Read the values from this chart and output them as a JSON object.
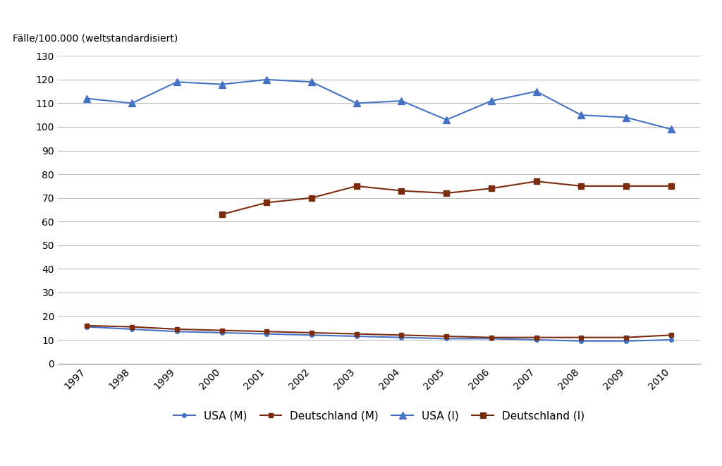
{
  "years": [
    1997,
    1998,
    1999,
    2000,
    2001,
    2002,
    2003,
    2004,
    2005,
    2006,
    2007,
    2008,
    2009,
    2010
  ],
  "usa_mortality": [
    15.5,
    14.5,
    13.5,
    13.0,
    12.5,
    12.0,
    11.5,
    11.0,
    10.5,
    10.5,
    10.0,
    9.5,
    9.5,
    10.0
  ],
  "deutschland_mortality": [
    16.0,
    15.5,
    14.5,
    14.0,
    13.5,
    13.0,
    12.5,
    12.0,
    11.5,
    11.0,
    11.0,
    11.0,
    11.0,
    12.0
  ],
  "usa_incidence": [
    112,
    110,
    119,
    118,
    120,
    119,
    110,
    111,
    103,
    111,
    115,
    105,
    104,
    99
  ],
  "deutschland_incidence": [
    null,
    null,
    null,
    63,
    68,
    70,
    75,
    73,
    72,
    74,
    77,
    75,
    75,
    75
  ],
  "usa_mortality_color": "#4472C4",
  "deutschland_mortality_color": "#7B2C0E",
  "usa_incidence_color": "#4472C4",
  "deutschland_incidence_color": "#7B2C0E",
  "ylabel": "Fälle/100.000 (weltstandardisiert)",
  "ylim": [
    0,
    130
  ],
  "yticks": [
    0,
    10,
    20,
    30,
    40,
    50,
    60,
    70,
    80,
    90,
    100,
    110,
    120,
    130
  ],
  "background_color": "#ffffff",
  "legend_labels": [
    "USA (M)",
    "Deutschland (M)",
    "USA (I)",
    "Deutschland (I)"
  ],
  "grid_color": "#c0c0c0",
  "title_fontsize": 10,
  "tick_fontsize": 10,
  "legend_fontsize": 11
}
